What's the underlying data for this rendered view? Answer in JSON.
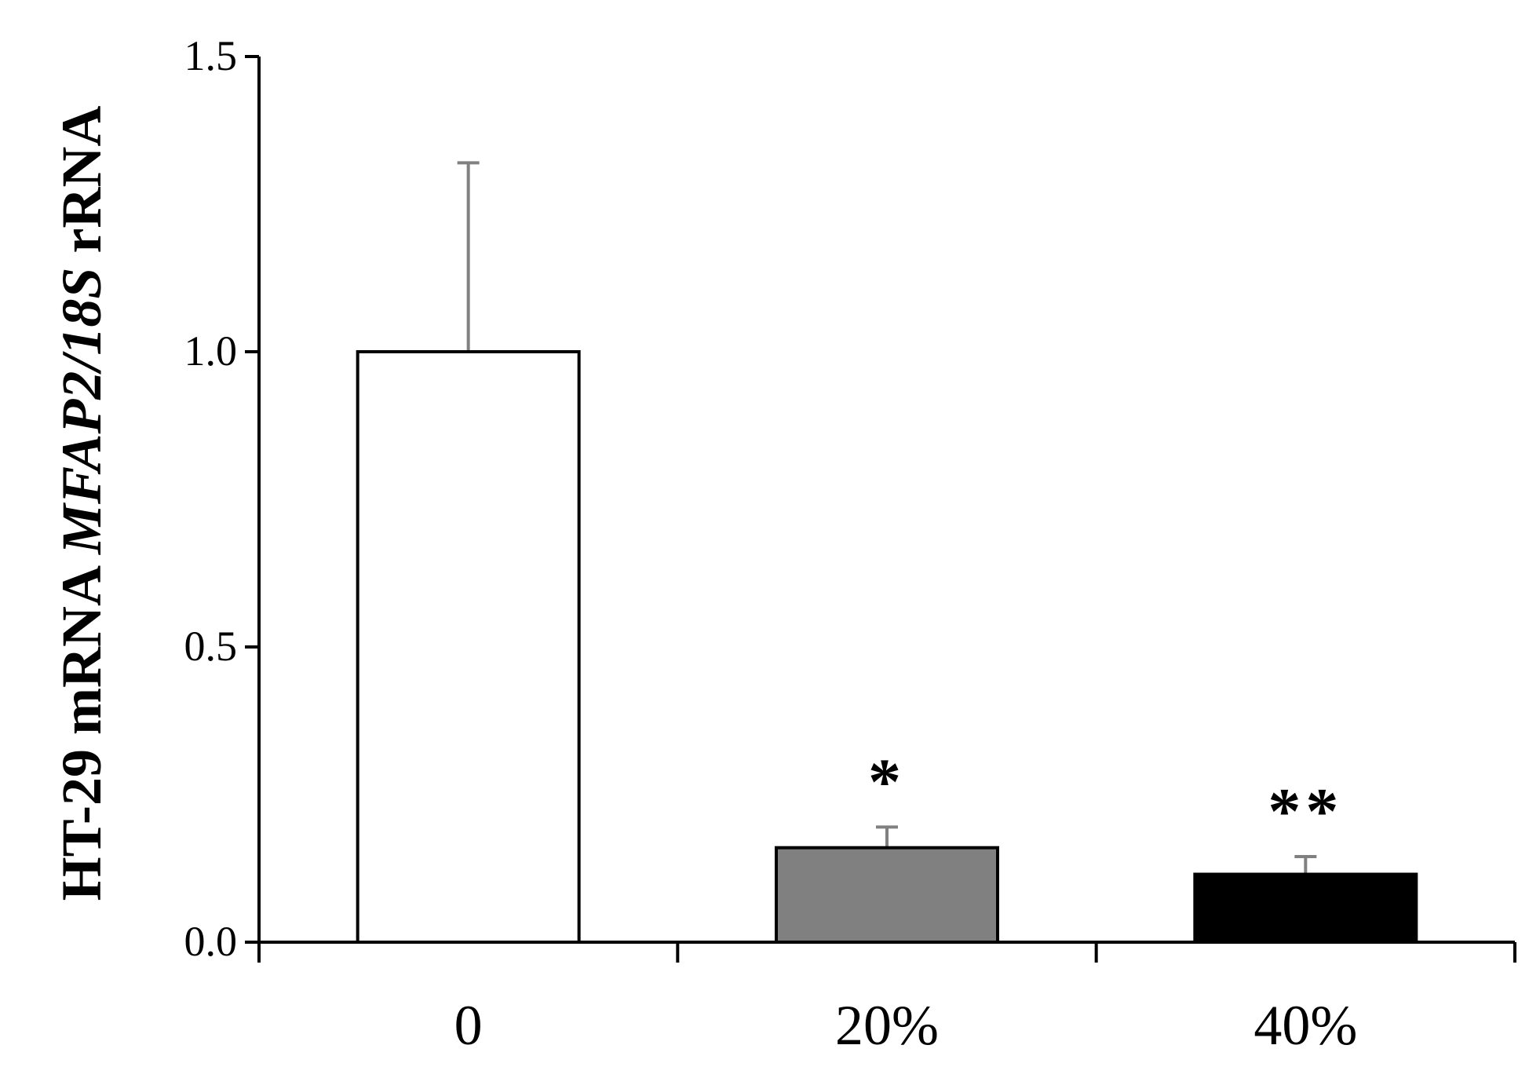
{
  "chart_data": {
    "type": "bar",
    "categories": [
      "0",
      "20%",
      "40%"
    ],
    "values": [
      1.0,
      0.16,
      0.115
    ],
    "errors": [
      0.32,
      0.035,
      0.03
    ],
    "significance": [
      "",
      "*",
      "**"
    ],
    "colors": [
      "#ffffff",
      "#808080",
      "#000000"
    ],
    "error_bar_color": "#808080",
    "ylabel_parts": [
      {
        "text": "HT-29 mRNA ",
        "italic": false
      },
      {
        "text": "MFAP2/18S",
        "italic": true
      },
      {
        "text": " rRNA",
        "italic": false
      }
    ],
    "ylim": [
      0,
      1.5
    ],
    "yticks": [
      "0.0",
      "0.5",
      "1.0",
      "1.5"
    ],
    "grid": false,
    "legend": "none"
  }
}
